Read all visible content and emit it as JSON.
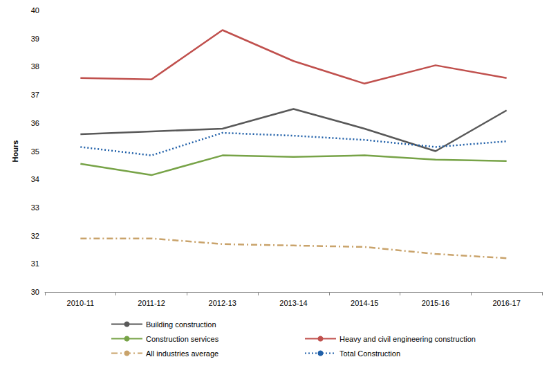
{
  "chart_data": {
    "type": "line",
    "y_label": "Hours",
    "categories": [
      "2010-11",
      "2011-12",
      "2012-13",
      "2013-14",
      "2014-15",
      "2015-16",
      "2016-17"
    ],
    "series": [
      {
        "name": "Building construction",
        "color": "#595959",
        "line_style": "solid",
        "values": [
          35.6,
          35.7,
          35.8,
          36.5,
          35.8,
          35.0,
          36.45
        ]
      },
      {
        "name": "Heavy and civil engineering construction",
        "color": "#c0504d",
        "line_style": "solid",
        "values": [
          37.6,
          37.55,
          39.3,
          38.2,
          37.4,
          38.05,
          37.6
        ]
      },
      {
        "name": "Construction services",
        "color": "#77a347",
        "line_style": "solid",
        "values": [
          34.55,
          34.15,
          34.85,
          34.8,
          34.85,
          34.7,
          34.65
        ]
      },
      {
        "name": "Total Construction",
        "color": "#1f5fa8",
        "line_style": "dotted",
        "values": [
          35.15,
          34.85,
          35.65,
          35.55,
          35.4,
          35.15,
          35.35
        ]
      },
      {
        "name": "All industries average",
        "color": "#c9a36b",
        "line_style": "dashdot",
        "values": [
          31.9,
          31.9,
          31.7,
          31.65,
          31.6,
          31.35,
          31.2
        ]
      }
    ],
    "ylim": [
      30,
      40
    ],
    "yticks": [
      30,
      31,
      32,
      33,
      34,
      35,
      36,
      37,
      38,
      39,
      40
    ],
    "grid": false,
    "legend": "bottom"
  }
}
